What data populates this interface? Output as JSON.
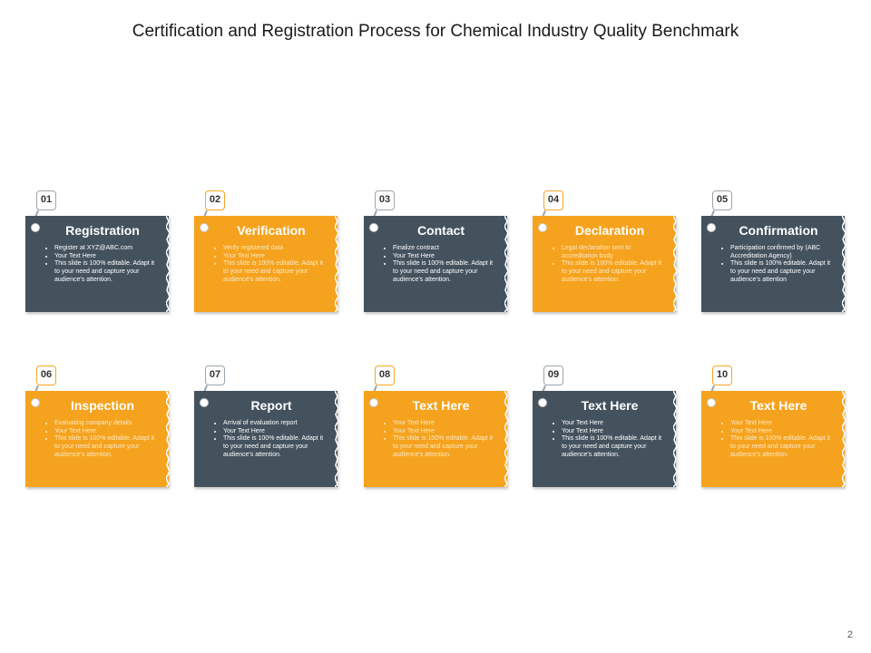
{
  "title": "Certification and Registration Process for Chemical Industry Quality Benchmark",
  "page_number": "2",
  "colors": {
    "slate": "#44525e",
    "orange": "#f5a31e",
    "slate_text": "#ffffff",
    "orange_text": "#fbe8c6"
  },
  "steps": [
    {
      "number": "01",
      "title": "Registration",
      "theme": "slate",
      "bullets": [
        "Register at XYZ@ABC.com",
        "Your Text Here",
        "This slide is 100% editable. Adapt it to your need and capture your audience's attention."
      ]
    },
    {
      "number": "02",
      "title": "Verification",
      "theme": "orange",
      "bullets": [
        "Verify registered data",
        "Your Text Here",
        "This slide is 100% editable. Adapt it to your need and capture your audience's attention."
      ]
    },
    {
      "number": "03",
      "title": "Contact",
      "theme": "slate",
      "bullets": [
        "Finalize contract",
        "Your Text Here",
        "This slide is 100% editable. Adapt it to your need and capture your audience's attention."
      ]
    },
    {
      "number": "04",
      "title": "Declaration",
      "theme": "orange",
      "bullets": [
        "Legal declaration sent to accreditation body",
        "This slide is 100% editable. Adapt it to your need and capture your audience's attention."
      ]
    },
    {
      "number": "05",
      "title": "Confirmation",
      "theme": "slate",
      "bullets": [
        "Participation confirmed by (ABC Accreditation Agency)",
        "This slide is 100% editable. Adapt it to your need and capture your audience's attention"
      ]
    },
    {
      "number": "06",
      "title": "Inspection",
      "theme": "orange",
      "bullets": [
        "Evaluating company details",
        "Your Text Here",
        "This slide is 100% editable. Adapt it to your need and capture your audience's attention."
      ]
    },
    {
      "number": "07",
      "title": "Report",
      "theme": "slate",
      "bullets": [
        "Arrival of evaluation report",
        "Your Text Here",
        "This slide is 100% editable. Adapt it to your need and capture your audience's attention."
      ]
    },
    {
      "number": "08",
      "title": "Text Here",
      "theme": "orange",
      "bullets": [
        "Your Text Here",
        "Your Text Here",
        "This slide is 100% editable. Adapt it to your need and capture your audience's attention."
      ]
    },
    {
      "number": "09",
      "title": "Text Here",
      "theme": "slate",
      "bullets": [
        "Your Text Here",
        "Your Text Here",
        "This slide is 100% editable. Adapt it to your need and capture your audience's attention."
      ]
    },
    {
      "number": "10",
      "title": "Text Here",
      "theme": "orange",
      "bullets": [
        "Your Text Here",
        "Your Text Here",
        "This slide is 100% editable. Adapt it to your need and capture your audience's attention."
      ]
    }
  ]
}
